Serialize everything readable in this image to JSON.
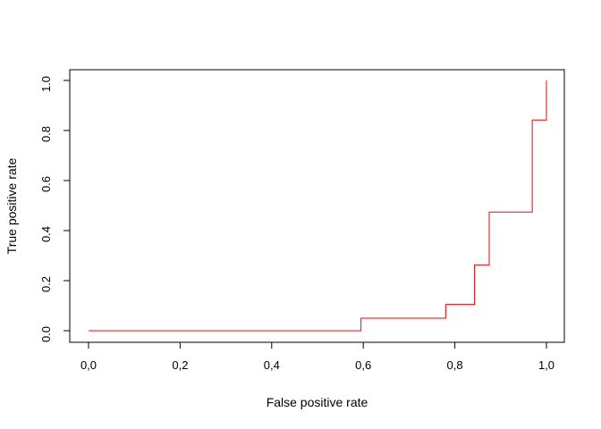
{
  "chart_data": {
    "type": "line",
    "title": "",
    "xlabel": "False positive rate",
    "ylabel": "True positive rate",
    "xlim": [
      0,
      1
    ],
    "ylim": [
      0,
      1
    ],
    "grid": false,
    "x_ticks": [
      "0,0",
      "0,2",
      "0,4",
      "0,6",
      "0,8",
      "1,0"
    ],
    "y_ticks": [
      "0.0",
      "0.2",
      "0.4",
      "0.6",
      "0.8",
      "1.0"
    ],
    "series": [
      {
        "color": "#ff0000",
        "step": true,
        "x": [
          0.0,
          0.595,
          0.595,
          0.78,
          0.78,
          0.843,
          0.843,
          0.875,
          0.875,
          0.969,
          0.969,
          1.0,
          1.0
        ],
        "y": [
          0.0,
          0.0,
          0.05,
          0.05,
          0.105,
          0.105,
          0.263,
          0.263,
          0.474,
          0.474,
          0.842,
          0.842,
          1.0
        ]
      }
    ]
  }
}
